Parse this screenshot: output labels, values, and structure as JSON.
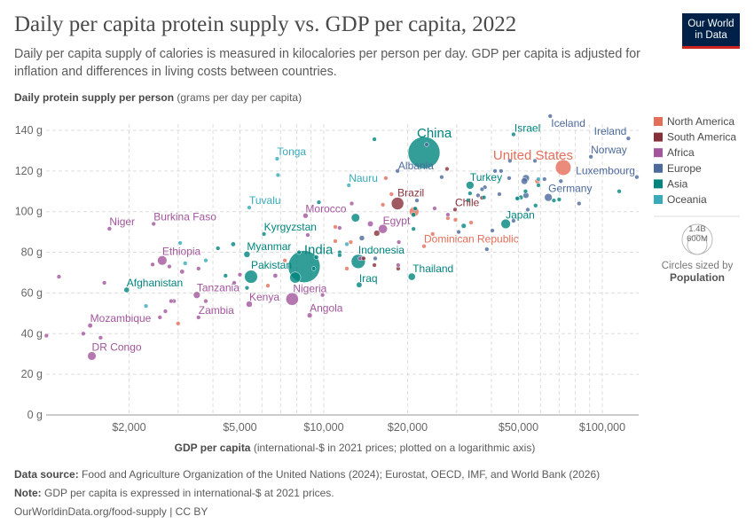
{
  "header": {
    "title": "Daily per capita protein supply vs. GDP per capita, 2022",
    "subtitle": "Daily per capita supply of calories is measured in kilocalories per person per day. GDP per capita is adjusted for inflation and differences in living costs between countries.",
    "logo_line1": "Our World",
    "logo_line2": "in Data"
  },
  "footer": {
    "source_label": "Data source:",
    "source": "Food and Agriculture Organization of the United Nations (2024); Eurostat, OECD, IMF, and World Bank (2026)",
    "note_label": "Note:",
    "note": "GDP per capita is expressed in international-$ at 2021 prices.",
    "url": "OurWorldinData.org/food-supply | CC BY"
  },
  "chart_data": {
    "type": "scatter",
    "title": "Daily per capita protein supply vs. GDP per capita, 2022",
    "xlabel_bold": "GDP per capita",
    "xlabel_rest": " (international-$ in 2021 prices; plotted on a logarithmic axis)",
    "ylabel_bold": "Daily protein supply per person",
    "ylabel_rest": " (grams per day per capita)",
    "x_scale": "log",
    "xlim": [
      1000,
      135000
    ],
    "ylim": [
      0,
      140
    ],
    "grid": true,
    "x_ticks": [
      {
        "v": 2000,
        "label": "$2,000"
      },
      {
        "v": 5000,
        "label": "$5,000"
      },
      {
        "v": 10000,
        "label": "$10,000"
      },
      {
        "v": 20000,
        "label": "$20,000"
      },
      {
        "v": 50000,
        "label": "$50,000"
      },
      {
        "v": 100000,
        "label": "$100,000"
      }
    ],
    "y_ticks": [
      {
        "v": 0,
        "label": "0 g"
      },
      {
        "v": 20,
        "label": "20 g"
      },
      {
        "v": 40,
        "label": "40 g"
      },
      {
        "v": 60,
        "label": "60 g"
      },
      {
        "v": 80,
        "label": "80 g"
      },
      {
        "v": 100,
        "label": "100 g"
      },
      {
        "v": 120,
        "label": "120 g"
      },
      {
        "v": 140,
        "label": "140 g"
      }
    ],
    "legend_position": "right",
    "legend": [
      {
        "name": "North America",
        "color": "#E56E5A"
      },
      {
        "name": "South America",
        "color": "#883039"
      },
      {
        "name": "Africa",
        "color": "#A2559C"
      },
      {
        "name": "Europe",
        "color": "#4C6A9C"
      },
      {
        "name": "Asia",
        "color": "#00847E"
      },
      {
        "name": "Oceania",
        "color": "#38AABA"
      }
    ],
    "size_legend": {
      "title": "Circles sized by",
      "variable": "Population",
      "big": "1.4B",
      "small": "600M"
    },
    "points": [
      {
        "name": "China",
        "c": "Asia",
        "x": 22900,
        "y": 129,
        "pop": 1412
      },
      {
        "name": "India",
        "c": "Asia",
        "x": 8500,
        "y": 73,
        "pop": 1417
      },
      {
        "name": "United States",
        "c": "North America",
        "x": 72400,
        "y": 121.7,
        "pop": 333
      },
      {
        "name": "Indonesia",
        "c": "Asia",
        "x": 13300,
        "y": 75.5,
        "pop": 276
      },
      {
        "name": "Pakistan",
        "c": "Asia",
        "x": 5480,
        "y": 68,
        "pop": 236
      },
      {
        "name": "Nigeria",
        "c": "Africa",
        "x": 7700,
        "y": 57,
        "pop": 219
      },
      {
        "name": "Brazil",
        "c": "South America",
        "x": 18400,
        "y": 104,
        "pop": 215
      },
      {
        "name": "Ethiopia",
        "c": "Africa",
        "x": 2630,
        "y": 76,
        "pop": 123
      },
      {
        "name": "Egypt",
        "c": "Africa",
        "x": 16300,
        "y": 91.5,
        "pop": 111
      },
      {
        "name": "Japan",
        "c": "Asia",
        "x": 45000,
        "y": 94,
        "pop": 125
      },
      {
        "name": "DR Congo",
        "c": "Africa",
        "x": 1470,
        "y": 29,
        "pop": 99
      },
      {
        "name": "Turkey",
        "c": "Asia",
        "x": 33500,
        "y": 113,
        "pop": 85
      },
      {
        "name": "Germany",
        "c": "Europe",
        "x": 64000,
        "y": 107,
        "pop": 84
      },
      {
        "name": "Thailand",
        "c": "Asia",
        "x": 20700,
        "y": 68,
        "pop": 72
      },
      {
        "name": "Tanzania",
        "c": "Africa",
        "x": 3500,
        "y": 59,
        "pop": 65
      },
      {
        "name": "Kenya",
        "c": "Africa",
        "x": 5400,
        "y": 54.5,
        "pop": 54
      },
      {
        "name": "Myanmar",
        "c": "Asia",
        "x": 5300,
        "y": 79,
        "pop": 54
      },
      {
        "name": "Iraq",
        "c": "Asia",
        "x": 13400,
        "y": 64,
        "pop": 44
      },
      {
        "name": "Afghanistan",
        "c": "Asia",
        "x": 1960,
        "y": 61.5,
        "pop": 41
      },
      {
        "name": "Morocco",
        "c": "Africa",
        "x": 8600,
        "y": 98,
        "pop": 37
      },
      {
        "name": "Angola",
        "c": "Africa",
        "x": 8900,
        "y": 49,
        "pop": 36
      },
      {
        "name": "Mozambique",
        "c": "Africa",
        "x": 1450,
        "y": 44,
        "pop": 33
      },
      {
        "name": "Niger",
        "c": "Africa",
        "x": 1700,
        "y": 91.6,
        "pop": 26
      },
      {
        "name": "Burkina Faso",
        "c": "Africa",
        "x": 2450,
        "y": 94,
        "pop": 23
      },
      {
        "name": "Chile",
        "c": "South America",
        "x": 29600,
        "y": 101,
        "pop": 19.6
      },
      {
        "name": "Zambia",
        "c": "Africa",
        "x": 3550,
        "y": 48,
        "pop": 20
      },
      {
        "name": "Dominican Republic",
        "c": "North America",
        "x": 22900,
        "y": 83,
        "pop": 11
      },
      {
        "name": "Israel",
        "c": "Asia",
        "x": 48000,
        "y": 138,
        "pop": 9.5
      },
      {
        "name": "Kyrgyzstan",
        "c": "Asia",
        "x": 6100,
        "y": 89,
        "pop": 6.9
      },
      {
        "name": "Norway",
        "c": "Europe",
        "x": 91000,
        "y": 127,
        "pop": 5.5
      },
      {
        "name": "Ireland",
        "c": "Europe",
        "x": 124000,
        "y": 136,
        "pop": 5.1
      },
      {
        "name": "Albania",
        "c": "Europe",
        "x": 23400,
        "y": 133,
        "pop": 2.8
      },
      {
        "name": "Luxembourg",
        "c": "Europe",
        "x": 133000,
        "y": 117,
        "pop": 0.65
      },
      {
        "name": "Iceland",
        "c": "Europe",
        "x": 65000,
        "y": 147,
        "pop": 0.38
      },
      {
        "name": "Tonga",
        "c": "Oceania",
        "x": 6800,
        "y": 126,
        "pop": 0.1
      },
      {
        "name": "Tuvalu",
        "c": "Oceania",
        "x": 5400,
        "y": 102,
        "pop": 0.01
      },
      {
        "name": "Nauru",
        "c": "Oceania",
        "x": 12300,
        "y": 113,
        "pop": 0.01
      },
      {
        "c": "Africa",
        "x": 1120,
        "y": 68,
        "pop": 20
      },
      {
        "c": "Africa",
        "x": 1630,
        "y": 65,
        "pop": 15
      },
      {
        "c": "Africa",
        "x": 1010,
        "y": 39,
        "pop": 5
      },
      {
        "c": "Africa",
        "x": 1370,
        "y": 40,
        "pop": 8
      },
      {
        "c": "Africa",
        "x": 1580,
        "y": 38,
        "pop": 12
      },
      {
        "c": "Africa",
        "x": 2430,
        "y": 74,
        "pop": 20
      },
      {
        "c": "Africa",
        "x": 2790,
        "y": 73,
        "pop": 15
      },
      {
        "c": "Africa",
        "x": 3100,
        "y": 70.5,
        "pop": 30
      },
      {
        "c": "Africa",
        "x": 3550,
        "y": 72,
        "pop": 10
      },
      {
        "c": "Africa",
        "x": 2830,
        "y": 56,
        "pop": 10
      },
      {
        "c": "Africa",
        "x": 2700,
        "y": 51,
        "pop": 25
      },
      {
        "c": "Africa",
        "x": 2580,
        "y": 48,
        "pop": 10
      },
      {
        "c": "Africa",
        "x": 2900,
        "y": 56,
        "pop": 15
      },
      {
        "c": "Africa",
        "x": 3770,
        "y": 56,
        "pop": 3
      },
      {
        "c": "Africa",
        "x": 4770,
        "y": 65,
        "pop": 5
      },
      {
        "c": "Africa",
        "x": 5000,
        "y": 69,
        "pop": 10
      },
      {
        "c": "Africa",
        "x": 6700,
        "y": 68.5,
        "pop": 30
      },
      {
        "c": "Africa",
        "x": 8760,
        "y": 88.5,
        "pop": 3
      },
      {
        "c": "Africa",
        "x": 11400,
        "y": 92,
        "pop": 12
      },
      {
        "c": "Africa",
        "x": 12600,
        "y": 104,
        "pop": 3
      },
      {
        "c": "Africa",
        "x": 14700,
        "y": 94,
        "pop": 45
      },
      {
        "c": "Africa",
        "x": 9900,
        "y": 59,
        "pop": 3
      },
      {
        "c": "Africa",
        "x": 25000,
        "y": 101.6,
        "pop": 2
      },
      {
        "c": "Africa",
        "x": 27900,
        "y": 98.5,
        "pop": 1.3
      },
      {
        "c": "Africa",
        "x": 18600,
        "y": 85,
        "pop": 1.3
      },
      {
        "c": "Africa",
        "x": 18500,
        "y": 73.7,
        "pop": 2
      },
      {
        "c": "Africa",
        "x": 13500,
        "y": 77,
        "pop": 6
      },
      {
        "c": "Europe",
        "x": 26500,
        "y": 117,
        "pop": 2
      },
      {
        "c": "Europe",
        "x": 18400,
        "y": 120,
        "pop": 2
      },
      {
        "c": "Europe",
        "x": 21600,
        "y": 105.5,
        "pop": 2
      },
      {
        "c": "Europe",
        "x": 41200,
        "y": 120,
        "pop": 5
      },
      {
        "c": "Europe",
        "x": 43300,
        "y": 120,
        "pop": 10
      },
      {
        "c": "Europe",
        "x": 46300,
        "y": 116.5,
        "pop": 10
      },
      {
        "c": "Europe",
        "x": 53200,
        "y": 116.5,
        "pop": 67
      },
      {
        "c": "Europe",
        "x": 52500,
        "y": 115,
        "pop": 60
      },
      {
        "c": "Europe",
        "x": 37900,
        "y": 112,
        "pop": 5
      },
      {
        "c": "Europe",
        "x": 37000,
        "y": 111,
        "pop": 5
      },
      {
        "c": "Europe",
        "x": 35800,
        "y": 108,
        "pop": 2
      },
      {
        "c": "Europe",
        "x": 42700,
        "y": 108.6,
        "pop": 4
      },
      {
        "c": "Europe",
        "x": 53200,
        "y": 108,
        "pop": 48
      },
      {
        "c": "Europe",
        "x": 71000,
        "y": 115,
        "pop": 5
      },
      {
        "c": "Europe",
        "x": 82500,
        "y": 104,
        "pop": 8
      },
      {
        "c": "Europe",
        "x": 57300,
        "y": 125,
        "pop": 3
      },
      {
        "c": "Europe",
        "x": 46600,
        "y": 125,
        "pop": 2
      },
      {
        "c": "Europe",
        "x": 62000,
        "y": 116,
        "pop": 4
      },
      {
        "c": "Europe",
        "x": 13700,
        "y": 87,
        "pop": 38
      },
      {
        "c": "Europe",
        "x": 15300,
        "y": 77,
        "pop": 3
      },
      {
        "c": "Europe",
        "x": 38500,
        "y": 81.5,
        "pop": 2
      },
      {
        "c": "Europe",
        "x": 30500,
        "y": 90,
        "pop": 3
      },
      {
        "c": "Europe",
        "x": 40300,
        "y": 90.7,
        "pop": 10
      },
      {
        "c": "Europe",
        "x": 48000,
        "y": 95.5,
        "pop": 3
      },
      {
        "c": "Europe",
        "x": 54000,
        "y": 101,
        "pop": 2
      },
      {
        "c": "Asia",
        "x": 33500,
        "y": 109,
        "pop": 5
      },
      {
        "c": "Asia",
        "x": 33000,
        "y": 105.6,
        "pop": 3
      },
      {
        "c": "Asia",
        "x": 37600,
        "y": 107,
        "pop": 3
      },
      {
        "c": "Asia",
        "x": 53000,
        "y": 110,
        "pop": 20
      },
      {
        "c": "Asia",
        "x": 57600,
        "y": 103,
        "pop": 3
      },
      {
        "c": "Asia",
        "x": 67000,
        "y": 105.5,
        "pop": 5
      },
      {
        "c": "Asia",
        "x": 70000,
        "y": 106,
        "pop": 3
      },
      {
        "c": "Asia",
        "x": 115000,
        "y": 110,
        "pop": 2
      },
      {
        "c": "Asia",
        "x": 49500,
        "y": 106.5,
        "pop": 3
      },
      {
        "c": "Asia",
        "x": 51000,
        "y": 107,
        "pop": 30
      },
      {
        "c": "Asia",
        "x": 59000,
        "y": 113,
        "pop": 4
      },
      {
        "c": "Asia",
        "x": 31800,
        "y": 93,
        "pop": 34
      },
      {
        "c": "Asia",
        "x": 21000,
        "y": 98.5,
        "pop": 30
      },
      {
        "c": "Asia",
        "x": 21000,
        "y": 91.5,
        "pop": 3
      },
      {
        "c": "Asia",
        "x": 21300,
        "y": 101.5,
        "pop": 5
      },
      {
        "c": "Asia",
        "x": 13000,
        "y": 97,
        "pop": 98
      },
      {
        "c": "Asia",
        "x": 15200,
        "y": 135.6,
        "pop": 3.4
      },
      {
        "c": "Asia",
        "x": 9600,
        "y": 104.6,
        "pop": 7
      },
      {
        "c": "Asia",
        "x": 11400,
        "y": 80,
        "pop": 3
      },
      {
        "c": "Asia",
        "x": 11400,
        "y": 78.6,
        "pop": 3
      },
      {
        "c": "Asia",
        "x": 4170,
        "y": 82,
        "pop": 7
      },
      {
        "c": "Asia",
        "x": 4730,
        "y": 84,
        "pop": 30
      },
      {
        "c": "Asia",
        "x": 4440,
        "y": 68.5,
        "pop": 10
      },
      {
        "c": "Asia",
        "x": 9200,
        "y": 72,
        "pop": 10
      },
      {
        "c": "Asia",
        "x": 7900,
        "y": 67.6,
        "pop": 171
      },
      {
        "c": "Asia",
        "x": 9400,
        "y": 77.6,
        "pop": 30
      },
      {
        "c": "Asia",
        "x": 8150,
        "y": 80,
        "pop": 10
      },
      {
        "c": "Asia",
        "x": 5300,
        "y": 62.5,
        "pop": 5
      },
      {
        "c": "North America",
        "x": 11000,
        "y": 92.5,
        "pop": 3
      },
      {
        "c": "North America",
        "x": 12500,
        "y": 85,
        "pop": 3
      },
      {
        "c": "North America",
        "x": 11000,
        "y": 85.5,
        "pop": 3
      },
      {
        "c": "North America",
        "x": 12100,
        "y": 72,
        "pop": 3
      },
      {
        "c": "North America",
        "x": 7250,
        "y": 76,
        "pop": 10
      },
      {
        "c": "North America",
        "x": 6300,
        "y": 63.6,
        "pop": 7
      },
      {
        "c": "North America",
        "x": 3000,
        "y": 45,
        "pop": 11
      },
      {
        "c": "North America",
        "x": 21100,
        "y": 100,
        "pop": 128
      },
      {
        "c": "North America",
        "x": 58500,
        "y": 115,
        "pop": 38
      },
      {
        "c": "North America",
        "x": 16700,
        "y": 116.5,
        "pop": 1.5
      },
      {
        "c": "North America",
        "x": 17500,
        "y": 108.6,
        "pop": 2
      },
      {
        "c": "North America",
        "x": 16300,
        "y": 103.4,
        "pop": 2
      },
      {
        "c": "North America",
        "x": 33800,
        "y": 94.6,
        "pop": 4
      },
      {
        "c": "North America",
        "x": 29700,
        "y": 96,
        "pop": 2
      },
      {
        "c": "North America",
        "x": 27900,
        "y": 96.8,
        "pop": 2
      },
      {
        "c": "North America",
        "x": 24600,
        "y": 89,
        "pop": 2
      },
      {
        "c": "South America",
        "x": 27700,
        "y": 121,
        "pop": 12
      },
      {
        "c": "South America",
        "x": 15500,
        "y": 89.4,
        "pop": 50
      },
      {
        "c": "South America",
        "x": 18500,
        "y": 72,
        "pop": 3
      },
      {
        "c": "South America",
        "x": 15200,
        "y": 73.7,
        "pop": 3
      },
      {
        "c": "South America",
        "x": 37000,
        "y": 106.8,
        "pop": 3.4
      },
      {
        "c": "South America",
        "x": 13900,
        "y": 77,
        "pop": 3
      },
      {
        "c": "Oceania",
        "x": 3050,
        "y": 84.6,
        "pop": 1
      },
      {
        "c": "Oceania",
        "x": 3180,
        "y": 74.6,
        "pop": 1
      },
      {
        "c": "Oceania",
        "x": 3770,
        "y": 76,
        "pop": 1
      },
      {
        "c": "Oceania",
        "x": 2300,
        "y": 53.6,
        "pop": 1
      },
      {
        "c": "Oceania",
        "x": 6850,
        "y": 118,
        "pop": 0.1
      },
      {
        "c": "Oceania",
        "x": 12100,
        "y": 84,
        "pop": 1
      },
      {
        "c": "Oceania",
        "x": 59000,
        "y": 116,
        "pop": 26
      },
      {
        "c": "Oceania",
        "x": 49800,
        "y": 106.4,
        "pop": 5
      }
    ]
  }
}
